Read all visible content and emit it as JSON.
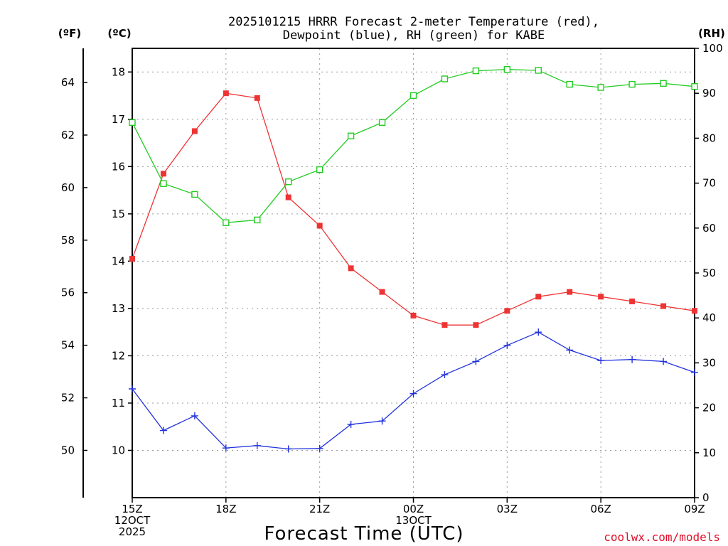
{
  "chart_data": {
    "type": "line",
    "title_lines": [
      "2025101215 HRRR Forecast 2-meter Temperature (red),",
      "Dewpoint (blue), RH (green) for KABE"
    ],
    "xlabel": "Forecast Time (UTC)",
    "credit": "coolwx.com/models",
    "units": {
      "fahrenheit": "(ºF)",
      "celsius": "(ºC)",
      "rh": "(RH)"
    },
    "x_hours": [
      15,
      16,
      17,
      18,
      19,
      20,
      21,
      22,
      23,
      24,
      25,
      26,
      27,
      28,
      29,
      30,
      31,
      32,
      33
    ],
    "xlim": [
      15,
      33
    ],
    "x_ticks": [
      {
        "hour": 15,
        "lines": [
          "15Z",
          "12OCT",
          "2025"
        ]
      },
      {
        "hour": 18,
        "lines": [
          "18Z"
        ]
      },
      {
        "hour": 21,
        "lines": [
          "21Z"
        ]
      },
      {
        "hour": 24,
        "lines": [
          "00Z",
          "13OCT"
        ]
      },
      {
        "hour": 27,
        "lines": [
          "03Z"
        ]
      },
      {
        "hour": 30,
        "lines": [
          "06Z"
        ]
      },
      {
        "hour": 33,
        "lines": [
          "09Z"
        ]
      }
    ],
    "celsius_axis": {
      "ylim": [
        9.0,
        18.5
      ],
      "ticks": [
        10,
        11,
        12,
        13,
        14,
        15,
        16,
        17,
        18
      ]
    },
    "fahrenheit_ticks": [
      50,
      52,
      54,
      56,
      58,
      60,
      62,
      64
    ],
    "rh_axis": {
      "ylim": [
        0,
        100
      ],
      "ticks": [
        0,
        10,
        20,
        30,
        40,
        50,
        60,
        70,
        80,
        90,
        100
      ]
    },
    "series": [
      {
        "name": "Temperature",
        "axis": "celsius",
        "color": "#ee3333",
        "marker": "filled-square",
        "values": [
          14.05,
          15.85,
          16.75,
          17.55,
          17.45,
          15.35,
          14.75,
          13.85,
          13.35,
          12.85,
          12.65,
          12.65,
          12.95,
          13.25,
          13.35,
          13.25,
          13.15,
          13.05,
          12.95
        ]
      },
      {
        "name": "Dewpoint",
        "axis": "celsius",
        "color": "#2233dd",
        "marker": "plus",
        "values": [
          11.3,
          10.42,
          10.73,
          10.05,
          10.1,
          10.03,
          10.04,
          10.55,
          10.62,
          11.2,
          11.6,
          11.88,
          12.22,
          12.5,
          12.12,
          11.9,
          11.92,
          11.88,
          11.65
        ]
      },
      {
        "name": "Relative Humidity",
        "axis": "rh",
        "color": "#22cc22",
        "marker": "open-square",
        "values": [
          83.5,
          69.9,
          67.5,
          61.2,
          61.8,
          70.3,
          73.0,
          80.5,
          83.5,
          89.5,
          93.2,
          95.0,
          95.3,
          95.1,
          92.0,
          91.3,
          92.0,
          92.2,
          91.5
        ]
      }
    ]
  }
}
